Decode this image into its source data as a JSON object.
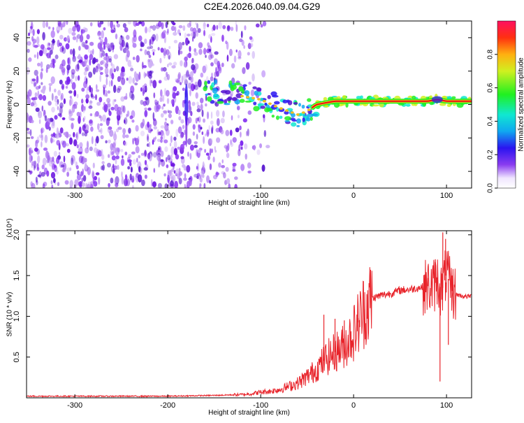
{
  "title": "C2E4.2026.040.09.04.G29",
  "colors": {
    "background": "#ffffff",
    "snr_line": "#e8232a",
    "spectrogram_noise": "#6a11e0",
    "ridge_core": "#e81010"
  },
  "chart_data": [
    {
      "type": "heatmap",
      "title": "",
      "xlabel": "Height of straight line (km)",
      "ylabel": "Frequency (Hz)",
      "xlim": [
        -352,
        127
      ],
      "ylim": [
        -50,
        50
      ],
      "xticks": [
        -300,
        -200,
        -100,
        0,
        100
      ],
      "yticks": [
        -40,
        -20,
        0,
        20,
        40
      ],
      "grid": false,
      "colorbar": {
        "label": "Normalized spectral amplitude",
        "range": [
          0,
          1
        ],
        "ticks": [
          "0.0",
          "0.2",
          "0.4",
          "0.6",
          "0.8"
        ],
        "colormap": "rainbow (white/violet at 0 to red at 1)"
      },
      "ridge": {
        "description": "Frequency of peak spectral amplitude vs height",
        "x": [
          -160,
          -140,
          -120,
          -100,
          -80,
          -60,
          -50,
          -40,
          -30,
          -20,
          -10,
          0,
          20,
          40,
          60,
          80,
          90,
          100,
          127
        ],
        "y": [
          8,
          7,
          5,
          3,
          -2,
          -6,
          -4,
          0,
          1,
          2,
          2,
          2,
          2,
          2,
          2,
          2,
          3,
          2,
          2
        ]
      },
      "noise_region": {
        "x_from": -352,
        "x_to": -130,
        "amplitude": "low (~0.1-0.2)"
      }
    },
    {
      "type": "line",
      "title": "",
      "xlabel": "Height of straight line (km)",
      "ylabel": "SNR (10 * v/v)",
      "y_multiplier": "(x10⁴)",
      "xlim": [
        -352,
        127
      ],
      "ylim": [
        0,
        2.05
      ],
      "xticks": [
        -300,
        -200,
        -100,
        0,
        100
      ],
      "yticks": [
        "0.5",
        "1.0",
        "1.5",
        "2.0"
      ],
      "grid": false,
      "series": [
        {
          "values_note": "SNR envelope in units of 10^4",
          "x": [
            -352,
            -300,
            -250,
            -200,
            -150,
            -120,
            -110,
            -100,
            -90,
            -80,
            -70,
            -60,
            -50,
            -40,
            -30,
            -20,
            -10,
            0,
            10,
            20,
            30,
            40,
            50,
            60,
            70,
            80,
            85,
            90,
            95,
            100,
            105,
            110,
            120,
            127
          ],
          "y": [
            0.02,
            0.02,
            0.02,
            0.02,
            0.03,
            0.04,
            0.05,
            0.07,
            0.08,
            0.1,
            0.14,
            0.18,
            0.26,
            0.35,
            0.48,
            0.56,
            0.64,
            0.8,
            1.05,
            1.22,
            1.26,
            1.28,
            1.32,
            1.33,
            1.35,
            1.37,
            1.35,
            1.45,
            1.3,
            1.55,
            1.32,
            1.27,
            1.24,
            1.25
          ]
        }
      ],
      "spikes": {
        "x": [
          -32,
          -20,
          -10,
          5,
          12,
          80,
          88,
          93,
          96,
          99,
          102,
          106
        ],
        "y": [
          1.02,
          0.97,
          0.95,
          0.98,
          1.0,
          1.47,
          1.7,
          0.2,
          2.03,
          1.95,
          0.65,
          1.5
        ]
      }
    }
  ]
}
